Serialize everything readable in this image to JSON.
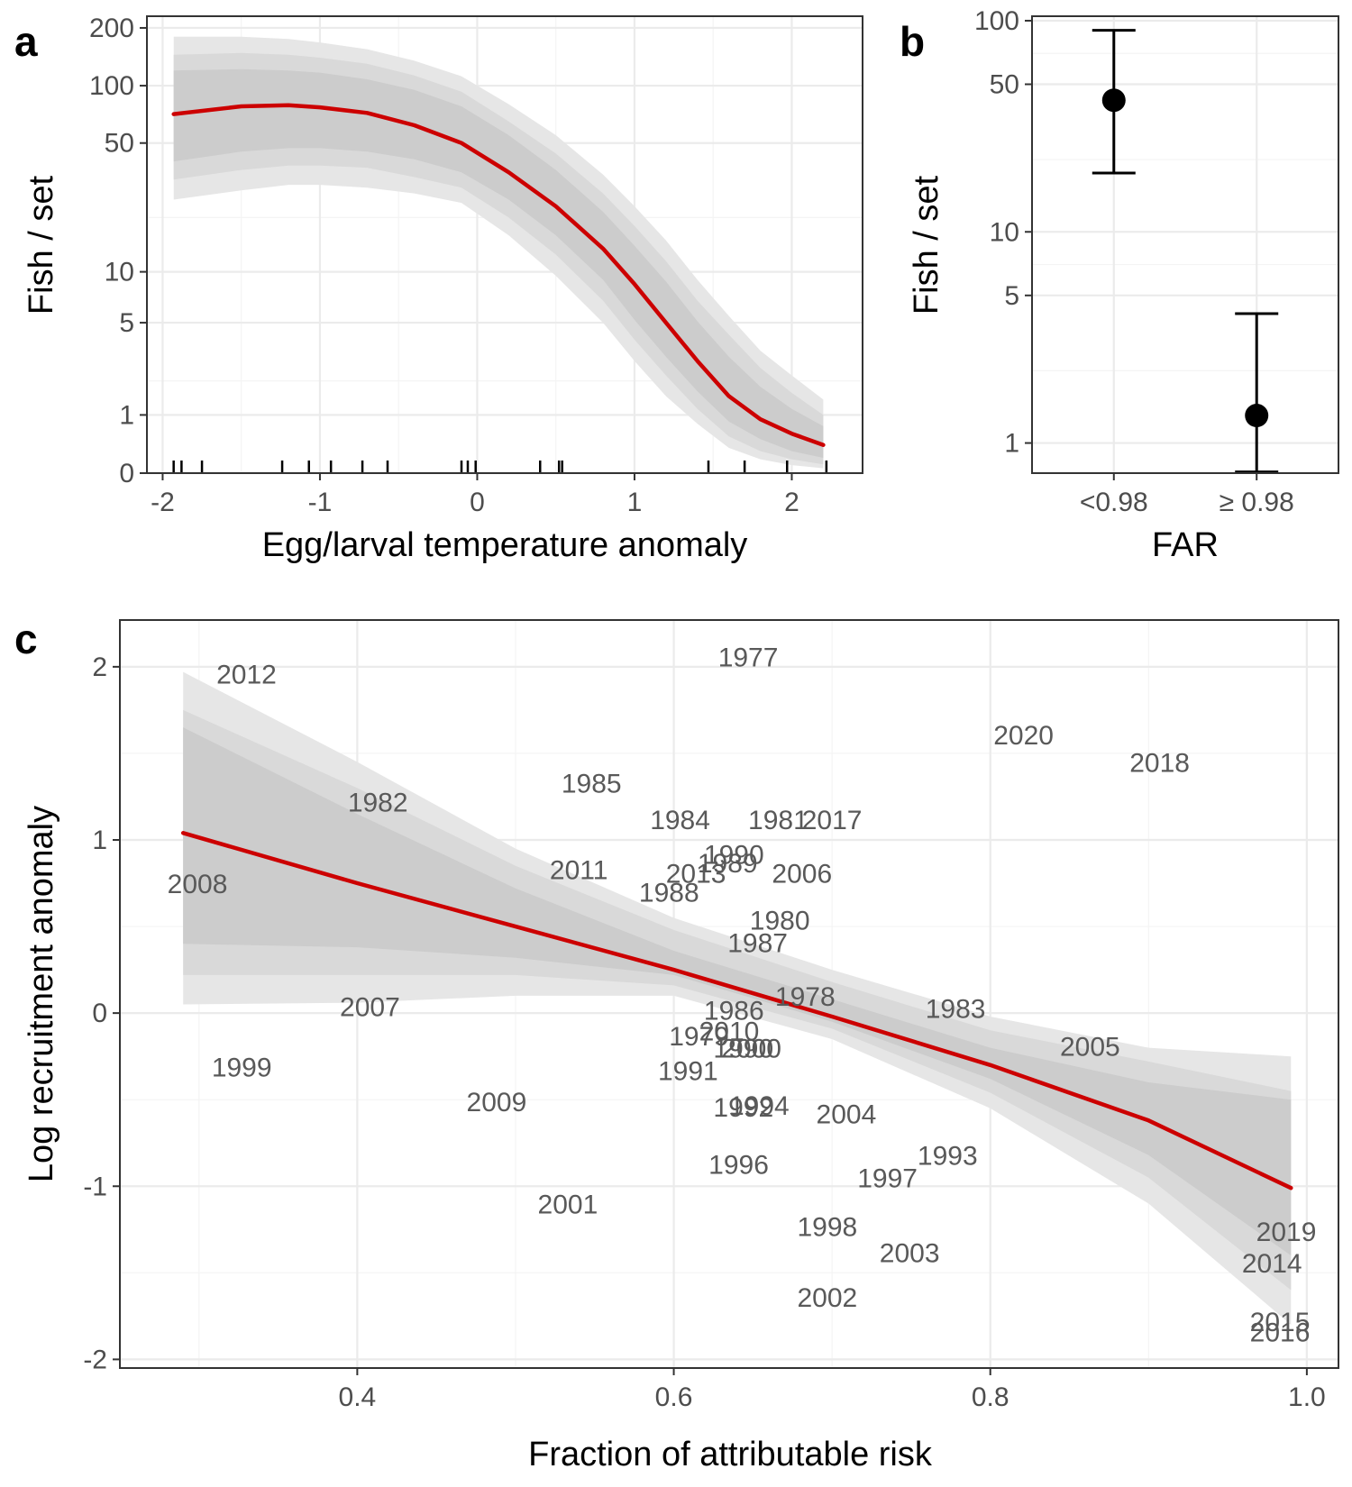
{
  "colors": {
    "fit_line": "#cc0000",
    "band_outer": "#e6e6e6",
    "band_middle": "#d9d9d9",
    "band_inner": "#cccccc",
    "point": "#000000",
    "label": "#595959"
  },
  "chart_data": [
    {
      "panel": "a",
      "type": "line",
      "xlabel": "Egg/larval temperature anomaly",
      "ylabel": "Fish / set",
      "y_scale": "log(y+1)",
      "xlim": [
        -2.1,
        2.45
      ],
      "ylim": [
        0,
        230
      ],
      "x_ticks": [
        -2,
        -1,
        0,
        1,
        2
      ],
      "x_tick_labels": [
        "-2",
        "-1",
        "0",
        "1",
        "2"
      ],
      "y_ticks": [
        0,
        1,
        5,
        10,
        50,
        100,
        200
      ],
      "y_tick_labels": [
        "0",
        "1",
        "5",
        "10",
        "50",
        "100",
        "200"
      ],
      "fit": {
        "x": [
          -1.93,
          -1.5,
          -1.2,
          -1.0,
          -0.7,
          -0.4,
          -0.1,
          0.2,
          0.5,
          0.8,
          1.0,
          1.2,
          1.4,
          1.6,
          1.8,
          2.0,
          2.2
        ],
        "y": [
          71,
          78,
          79,
          77,
          72,
          62,
          50,
          35,
          23,
          13.5,
          8.5,
          5,
          2.8,
          1.5,
          0.9,
          0.6,
          0.4
        ],
        "lo95": [
          25,
          28,
          30,
          30,
          29,
          27,
          24,
          16,
          9.5,
          5,
          2.8,
          1.5,
          0.8,
          0.35,
          0.18,
          0.1,
          0.06
        ],
        "hi95": [
          180,
          180,
          175,
          168,
          155,
          135,
          112,
          80,
          55,
          34,
          23,
          15,
          9,
          5.5,
          3.3,
          2.2,
          1.4
        ],
        "lo80": [
          32,
          36,
          38,
          38,
          37,
          33,
          29,
          20,
          12.5,
          6.8,
          3.9,
          2.2,
          1.15,
          0.55,
          0.3,
          0.18,
          0.11
        ],
        "hi80": [
          145,
          148,
          145,
          140,
          130,
          113,
          93,
          65,
          44,
          27,
          18,
          11.5,
          6.8,
          4.2,
          2.5,
          1.6,
          1.0
        ],
        "lo50": [
          40,
          45,
          47,
          47,
          45,
          41,
          35,
          25,
          16,
          9,
          5.2,
          3.0,
          1.65,
          0.85,
          0.5,
          0.3,
          0.2
        ],
        "hi50": [
          120,
          122,
          120,
          117,
          108,
          95,
          78,
          55,
          36,
          21.5,
          14,
          8.8,
          5.1,
          3.0,
          1.8,
          1.15,
          0.75
        ]
      },
      "rug_x": [
        -1.93,
        -1.88,
        -1.75,
        -1.24,
        -1.07,
        -0.93,
        -0.73,
        -0.57,
        -0.1,
        -0.06,
        -0.01,
        0.4,
        0.52,
        0.54,
        1.47,
        1.7,
        1.97,
        2.22
      ]
    },
    {
      "panel": "b",
      "type": "scatter",
      "xlabel": "FAR",
      "ylabel": "Fish / set",
      "y_scale": "log",
      "ylim": [
        0.72,
        105
      ],
      "categories": [
        "<0.98",
        "≥ 0.98"
      ],
      "values": [
        42,
        1.35
      ],
      "lower": [
        19,
        0.73
      ],
      "upper": [
        90,
        4.1
      ],
      "y_ticks": [
        1,
        5,
        10,
        50,
        100
      ],
      "y_tick_labels": [
        "1",
        "5",
        "10",
        "50",
        "100"
      ]
    },
    {
      "panel": "c",
      "type": "scatter",
      "xlabel": "Fraction of attributable risk",
      "ylabel": "Log recruitment anomaly",
      "xlim": [
        0.25,
        1.02
      ],
      "ylim": [
        -2.05,
        2.27
      ],
      "x_ticks": [
        0.4,
        0.6,
        0.8,
        1.0
      ],
      "x_tick_labels": [
        "0.4",
        "0.6",
        "0.8",
        "1.0"
      ],
      "y_ticks": [
        -2,
        -1,
        0,
        1,
        2
      ],
      "y_tick_labels": [
        "-2",
        "-1",
        "0",
        "1",
        "2"
      ],
      "fit": {
        "x": [
          0.29,
          0.4,
          0.5,
          0.6,
          0.7,
          0.8,
          0.9,
          0.99
        ],
        "y": [
          1.04,
          0.75,
          0.5,
          0.25,
          -0.02,
          -0.3,
          -0.62,
          -1.01
        ],
        "lo95": [
          0.05,
          0.06,
          0.1,
          0.1,
          -0.15,
          -0.55,
          -1.1,
          -1.8
        ],
        "hi95": [
          1.97,
          1.45,
          0.95,
          0.55,
          0.25,
          -0.02,
          -0.2,
          -0.25
        ],
        "lo80": [
          0.22,
          0.22,
          0.22,
          0.16,
          -0.09,
          -0.46,
          -0.95,
          -1.6
        ],
        "hi80": [
          1.75,
          1.3,
          0.85,
          0.48,
          0.18,
          -0.1,
          -0.28,
          -0.45
        ],
        "lo50": [
          0.4,
          0.38,
          0.32,
          0.22,
          -0.05,
          -0.38,
          -0.82,
          -1.4
        ],
        "hi50": [
          1.65,
          1.15,
          0.72,
          0.36,
          0.08,
          -0.2,
          -0.4,
          -0.5
        ]
      },
      "points": [
        {
          "label": "2012",
          "x": 0.33,
          "y": 1.96
        },
        {
          "label": "1977",
          "x": 0.647,
          "y": 2.06
        },
        {
          "label": "2020",
          "x": 0.821,
          "y": 1.61
        },
        {
          "label": "2018",
          "x": 0.907,
          "y": 1.45
        },
        {
          "label": "1985",
          "x": 0.548,
          "y": 1.33
        },
        {
          "label": "1982",
          "x": 0.413,
          "y": 1.22
        },
        {
          "label": "1984",
          "x": 0.604,
          "y": 1.12
        },
        {
          "label": "1981",
          "x": 0.666,
          "y": 1.12
        },
        {
          "label": "2017",
          "x": 0.7,
          "y": 1.12
        },
        {
          "label": "1990",
          "x": 0.638,
          "y": 0.92
        },
        {
          "label": "1989",
          "x": 0.634,
          "y": 0.87
        },
        {
          "label": "2011",
          "x": 0.54,
          "y": 0.83
        },
        {
          "label": "2013",
          "x": 0.614,
          "y": 0.81
        },
        {
          "label": "2006",
          "x": 0.681,
          "y": 0.81
        },
        {
          "label": "2008",
          "x": 0.299,
          "y": 0.75
        },
        {
          "label": "1988",
          "x": 0.597,
          "y": 0.7
        },
        {
          "label": "1980",
          "x": 0.667,
          "y": 0.54
        },
        {
          "label": "1987",
          "x": 0.653,
          "y": 0.41
        },
        {
          "label": "1978",
          "x": 0.683,
          "y": 0.1
        },
        {
          "label": "2007",
          "x": 0.408,
          "y": 0.04
        },
        {
          "label": "1983",
          "x": 0.778,
          "y": 0.03
        },
        {
          "label": "1986",
          "x": 0.638,
          "y": 0.02
        },
        {
          "label": "2010",
          "x": 0.635,
          "y": -0.1
        },
        {
          "label": "1979",
          "x": 0.616,
          "y": -0.13
        },
        {
          "label": "1990",
          "x": 0.644,
          "y": -0.2
        },
        {
          "label": "2000",
          "x": 0.649,
          "y": -0.2
        },
        {
          "label": "2005",
          "x": 0.863,
          "y": -0.19
        },
        {
          "label": "1999",
          "x": 0.327,
          "y": -0.31
        },
        {
          "label": "1991",
          "x": 0.609,
          "y": -0.33
        },
        {
          "label": "2009",
          "x": 0.488,
          "y": -0.51
        },
        {
          "label": "1992",
          "x": 0.644,
          "y": -0.54
        },
        {
          "label": "1994",
          "x": 0.654,
          "y": -0.53
        },
        {
          "label": "2004",
          "x": 0.709,
          "y": -0.58
        },
        {
          "label": "1993",
          "x": 0.773,
          "y": -0.82
        },
        {
          "label": "1996",
          "x": 0.641,
          "y": -0.87
        },
        {
          "label": "1997",
          "x": 0.735,
          "y": -0.95
        },
        {
          "label": "2001",
          "x": 0.533,
          "y": -1.1
        },
        {
          "label": "1998",
          "x": 0.697,
          "y": -1.23
        },
        {
          "label": "2003",
          "x": 0.749,
          "y": -1.38
        },
        {
          "label": "2019",
          "x": 0.987,
          "y": -1.26
        },
        {
          "label": "2014",
          "x": 0.978,
          "y": -1.44
        },
        {
          "label": "2002",
          "x": 0.697,
          "y": -1.64
        },
        {
          "label": "2015",
          "x": 0.983,
          "y": -1.78
        },
        {
          "label": "2016",
          "x": 0.983,
          "y": -1.84
        }
      ]
    }
  ]
}
